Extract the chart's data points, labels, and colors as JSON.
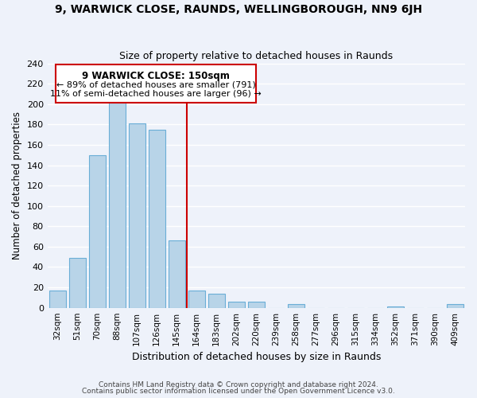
{
  "title": "9, WARWICK CLOSE, RAUNDS, WELLINGBOROUGH, NN9 6JH",
  "subtitle": "Size of property relative to detached houses in Raunds",
  "xlabel": "Distribution of detached houses by size in Raunds",
  "ylabel": "Number of detached properties",
  "bar_labels": [
    "32sqm",
    "51sqm",
    "70sqm",
    "88sqm",
    "107sqm",
    "126sqm",
    "145sqm",
    "164sqm",
    "183sqm",
    "202sqm",
    "220sqm",
    "239sqm",
    "258sqm",
    "277sqm",
    "296sqm",
    "315sqm",
    "334sqm",
    "352sqm",
    "371sqm",
    "390sqm",
    "409sqm"
  ],
  "bar_values": [
    17,
    49,
    150,
    201,
    181,
    175,
    66,
    17,
    14,
    6,
    6,
    0,
    4,
    0,
    0,
    0,
    0,
    1,
    0,
    0,
    4
  ],
  "bar_color": "#b8d4e8",
  "bar_edge_color": "#6aaed6",
  "vline_x_index": 6,
  "vline_color": "#cc0000",
  "annotation_title": "9 WARWICK CLOSE: 150sqm",
  "annotation_line1": "← 89% of detached houses are smaller (791)",
  "annotation_line2": "11% of semi-detached houses are larger (96) →",
  "annotation_box_color": "#cc0000",
  "ylim": [
    0,
    240
  ],
  "yticks": [
    0,
    20,
    40,
    60,
    80,
    100,
    120,
    140,
    160,
    180,
    200,
    220,
    240
  ],
  "footer1": "Contains HM Land Registry data © Crown copyright and database right 2024.",
  "footer2": "Contains public sector information licensed under the Open Government Licence v3.0.",
  "bg_color": "#eef2fa",
  "grid_color": "#ffffff"
}
